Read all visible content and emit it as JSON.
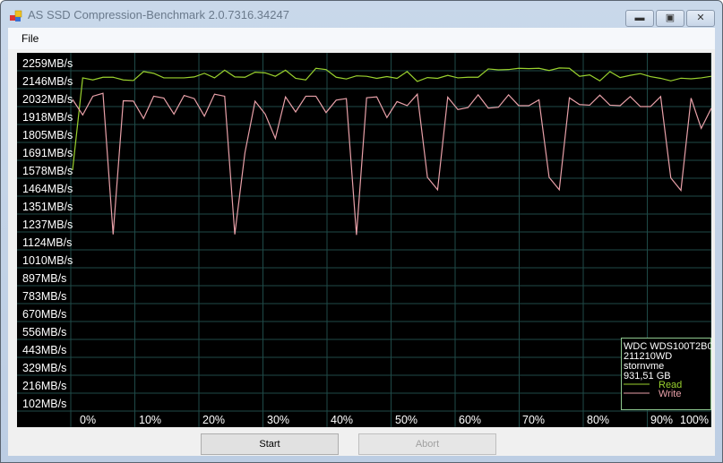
{
  "window": {
    "title": "AS SSD Compression-Benchmark 2.0.7316.34247",
    "controls": [
      "minimize",
      "maximize",
      "close"
    ]
  },
  "menu": {
    "file": "File"
  },
  "chart_data": {
    "type": "line",
    "ytick_labels": [
      "2259MB/s",
      "2146MB/s",
      "2032MB/s",
      "1918MB/s",
      "1805MB/s",
      "1691MB/s",
      "1578MB/s",
      "1464MB/s",
      "1351MB/s",
      "1237MB/s",
      "1124MB/s",
      "1010MB/s",
      "897MB/s",
      "783MB/s",
      "670MB/s",
      "556MB/s",
      "443MB/s",
      "329MB/s",
      "216MB/s",
      "102MB/s"
    ],
    "xtick_labels": [
      "0%",
      "10%",
      "20%",
      "30%",
      "40%",
      "50%",
      "60%",
      "70%",
      "80%",
      "90%",
      "100%"
    ],
    "xlim": [
      0,
      100
    ],
    "ylim_mbps": [
      102,
      2259
    ],
    "grid": true,
    "legend_placement": "bottom-right",
    "legend_info": [
      "WDC WDS100T2B0",
      "211210WD",
      "stornvme",
      "931,51 GB"
    ],
    "series": [
      {
        "name": "Read",
        "color": "#9ad22e",
        "values": [
          1580,
          2168,
          2155,
          2172,
          2172,
          2155,
          2151,
          2208,
          2197,
          2168,
          2168,
          2168,
          2174,
          2197,
          2168,
          2217,
          2174,
          2172,
          2204,
          2200,
          2178,
          2217,
          2165,
          2155,
          2229,
          2221,
          2172,
          2161,
          2181,
          2178,
          2165,
          2176,
          2165,
          2208,
          2145,
          2170,
          2165,
          2184,
          2168,
          2172,
          2172,
          2225,
          2219,
          2221,
          2229,
          2227,
          2229,
          2215,
          2231,
          2229,
          2178,
          2187,
          2149,
          2208,
          2170,
          2184,
          2195,
          2176,
          2165,
          2149,
          2166,
          2162,
          2168,
          2178
        ]
      },
      {
        "name": "Write",
        "color": "#e8a0a8",
        "values": [
          2030,
          1932,
          2051,
          2070,
          1171,
          2022,
          2020,
          1909,
          2051,
          2039,
          1937,
          2056,
          2036,
          1924,
          2064,
          2051,
          1171,
          1691,
          2019,
          1937,
          1782,
          2047,
          1951,
          2051,
          2051,
          1947,
          2026,
          2036,
          1167,
          2041,
          2047,
          1915,
          2017,
          1991,
          2064,
          1534,
          1455,
          2045,
          1966,
          1979,
          2060,
          1975,
          1981,
          2060,
          1991,
          1991,
          2028,
          1534,
          1455,
          2041,
          1998,
          1994,
          2058,
          1994,
          1991,
          2049,
          1985,
          1985,
          2049,
          1531,
          1451,
          2039,
          1846,
          1975
        ]
      }
    ]
  },
  "buttons": {
    "start": "Start",
    "abort": "Abort"
  }
}
